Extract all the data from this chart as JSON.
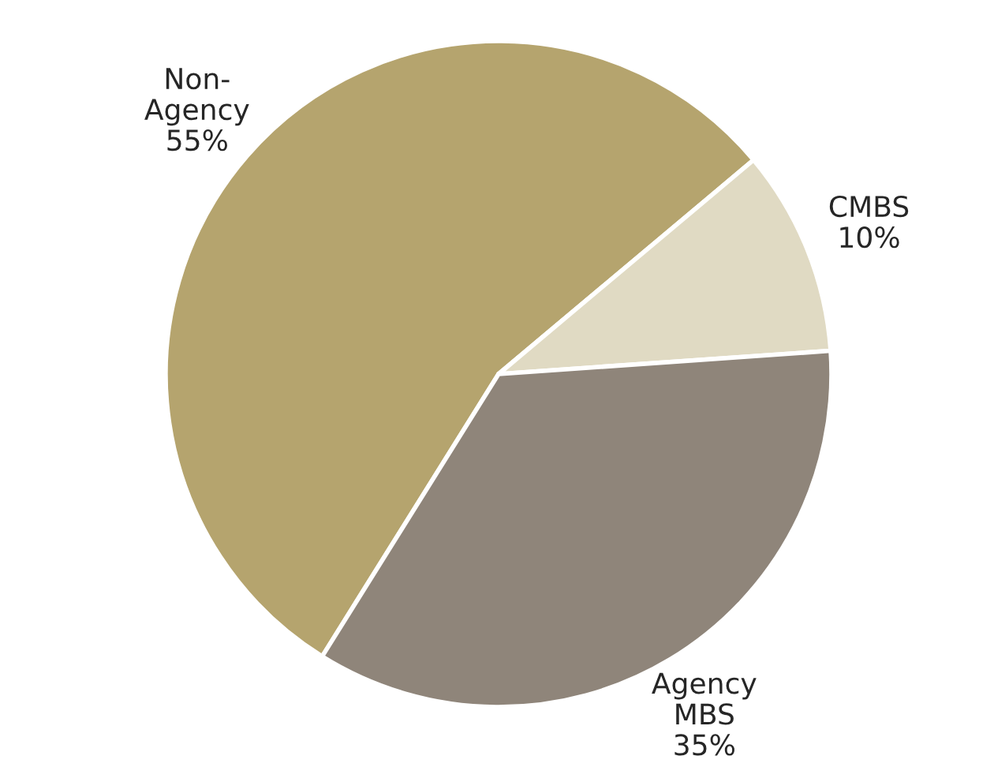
{
  "chart_data": {
    "type": "pie",
    "categories": [
      "Non-Agency",
      "CMBS",
      "Agency MBS"
    ],
    "values": [
      55,
      10,
      35
    ],
    "value_labels": [
      "55%",
      "10%",
      "35%"
    ],
    "colors": [
      "#b5a46e",
      "#e0dac3",
      "#8f857a"
    ]
  }
}
